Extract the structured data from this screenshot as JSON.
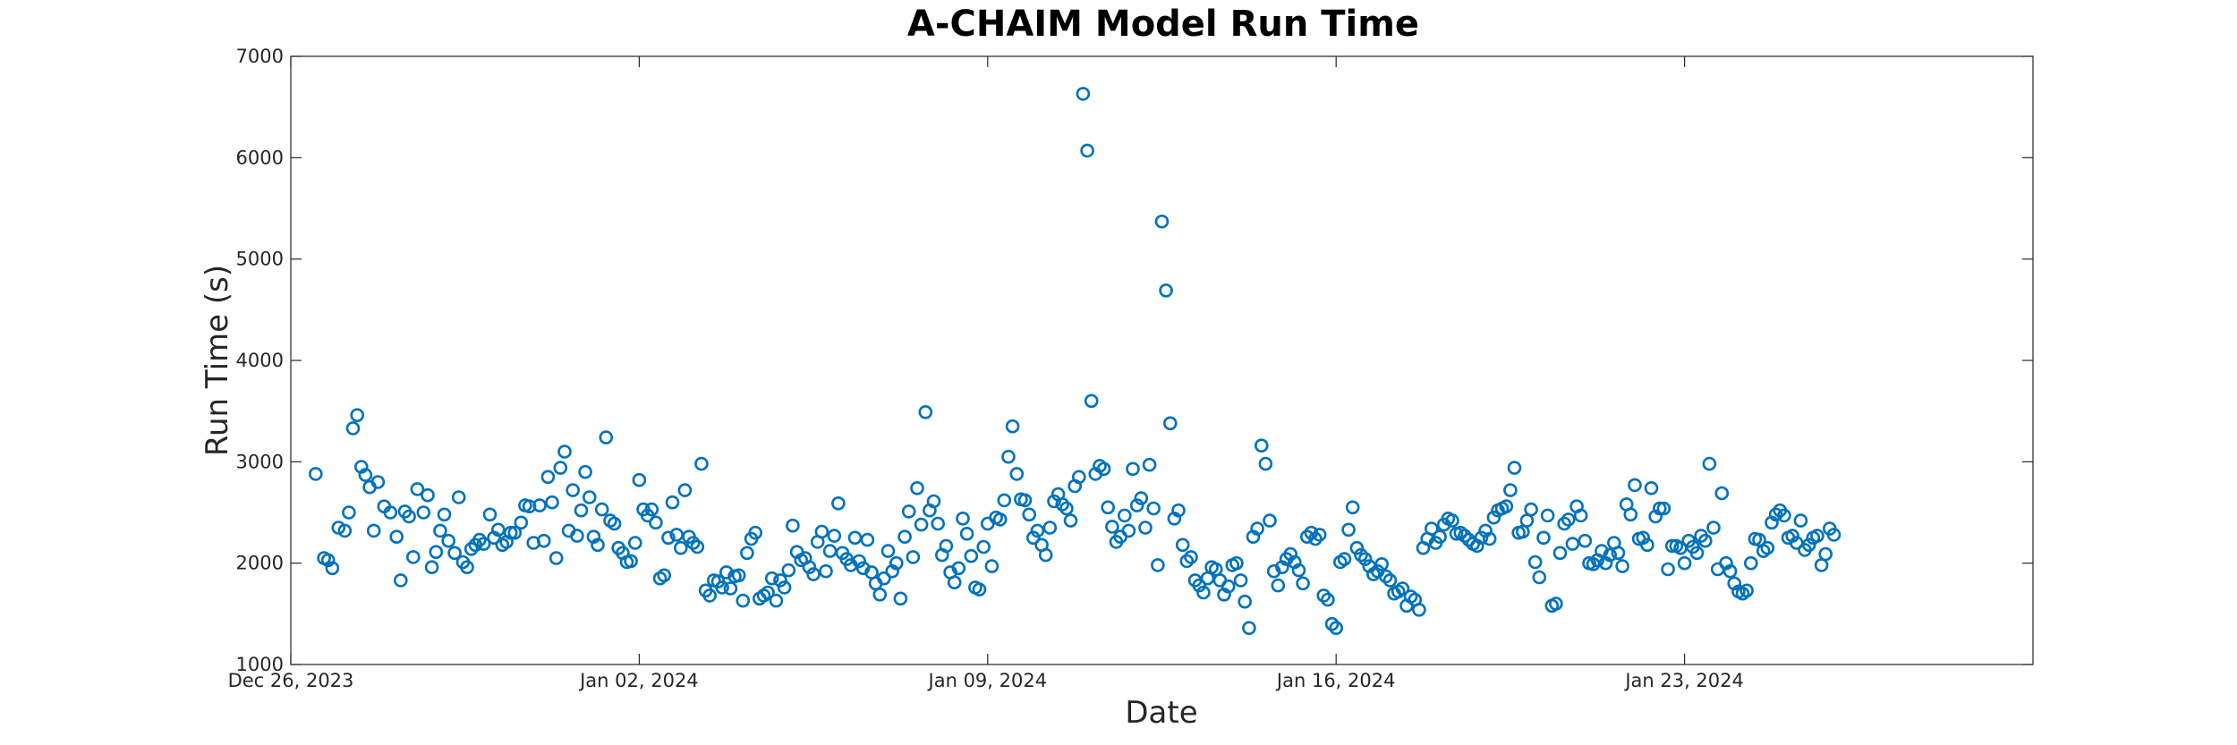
{
  "chart_data": {
    "type": "scatter",
    "title": "A-CHAIM Model Run Time",
    "xlabel": "Date",
    "ylabel": "Run Time (s)",
    "xlim": [
      "2023-12-26",
      "2024-01-30"
    ],
    "ylim": [
      1000,
      7000
    ],
    "x_ticks": [
      "2023-12-26",
      "2024-01-02",
      "2024-01-09",
      "2024-01-16",
      "2024-01-23"
    ],
    "x_tick_labels": [
      "Dec 26, 2023",
      "Jan 02, 2024",
      "Jan 09, 2024",
      "Jan 16, 2024",
      "Jan 23, 2024"
    ],
    "y_ticks": [
      1000,
      2000,
      3000,
      4000,
      5000,
      6000,
      7000
    ],
    "y_tick_labels": [
      "1000",
      "2000",
      "3000",
      "4000",
      "5000",
      "6000",
      "7000"
    ],
    "grid": false,
    "marker": "open-circle",
    "marker_color": "#0072BD",
    "series": [
      {
        "x": [
          "2023-12-26 12:00",
          "2023-12-26 16:00",
          "2023-12-26 18:00",
          "2023-12-26 20:00",
          "2023-12-26 23:00",
          "2023-12-27 02:00",
          "2023-12-27 04:00",
          "2023-12-27 06:00",
          "2023-12-27 08:00",
          "2023-12-27 10:00",
          "2023-12-27 12:00",
          "2023-12-27 14:00",
          "2023-12-27 16:00",
          "2023-12-27 18:00",
          "2023-12-27 21:00",
          "2023-12-28 00:00",
          "2023-12-28 03:00",
          "2023-12-28 05:00",
          "2023-12-28 07:00",
          "2023-12-28 09:00",
          "2023-12-28 11:00",
          "2023-12-28 13:00",
          "2023-12-28 16:00",
          "2023-12-28 18:00",
          "2023-12-28 20:00",
          "2023-12-28 22:00",
          "2023-12-29 00:00",
          "2023-12-29 02:00",
          "2023-12-29 04:00",
          "2023-12-29 07:00",
          "2023-12-29 09:00",
          "2023-12-29 11:00",
          "2023-12-29 13:00",
          "2023-12-29 15:00",
          "2023-12-29 17:00",
          "2023-12-29 19:00",
          "2023-12-29 21:00",
          "2023-12-30 00:00",
          "2023-12-30 02:00",
          "2023-12-30 04:00",
          "2023-12-30 06:00",
          "2023-12-30 08:00",
          "2023-12-30 10:00",
          "2023-12-30 12:00",
          "2023-12-30 15:00",
          "2023-12-30 17:00",
          "2023-12-30 19:00",
          "2023-12-30 21:00",
          "2023-12-31 00:00",
          "2023-12-31 02:00",
          "2023-12-31 04:00",
          "2023-12-31 06:00",
          "2023-12-31 08:00",
          "2023-12-31 10:00",
          "2023-12-31 12:00",
          "2023-12-31 14:00",
          "2023-12-31 16:00",
          "2023-12-31 18:00",
          "2023-12-31 20:00",
          "2023-12-31 22:00",
          "2024-01-01 00:00",
          "2024-01-01 02:00",
          "2024-01-01 04:00",
          "2024-01-01 06:00",
          "2024-01-01 08:00",
          "2024-01-01 10:00",
          "2024-01-01 12:00",
          "2024-01-01 14:00",
          "2024-01-01 16:00",
          "2024-01-01 18:00",
          "2024-01-01 20:00",
          "2024-01-01 22:00",
          "2024-01-02 00:00",
          "2024-01-02 02:00",
          "2024-01-02 04:00",
          "2024-01-02 06:00",
          "2024-01-02 08:00",
          "2024-01-02 10:00",
          "2024-01-02 12:00",
          "2024-01-02 14:00",
          "2024-01-02 16:00",
          "2024-01-02 18:00",
          "2024-01-02 20:00",
          "2024-01-02 22:00",
          "2024-01-03 00:00",
          "2024-01-03 02:00",
          "2024-01-03 04:00",
          "2024-01-03 06:00",
          "2024-01-03 08:00",
          "2024-01-03 10:00",
          "2024-01-03 12:00",
          "2024-01-03 14:00",
          "2024-01-03 16:00",
          "2024-01-03 18:00",
          "2024-01-03 20:00",
          "2024-01-03 22:00",
          "2024-01-04 00:00",
          "2024-01-04 02:00",
          "2024-01-04 04:00",
          "2024-01-04 06:00",
          "2024-01-04 08:00",
          "2024-01-04 10:00",
          "2024-01-04 12:00",
          "2024-01-04 14:00",
          "2024-01-04 16:00",
          "2024-01-04 18:00",
          "2024-01-04 20:00",
          "2024-01-04 22:00",
          "2024-01-05 00:00",
          "2024-01-05 02:00",
          "2024-01-05 04:00",
          "2024-01-05 06:00",
          "2024-01-05 08:00",
          "2024-01-05 10:00",
          "2024-01-05 12:00",
          "2024-01-05 14:00",
          "2024-01-05 16:00",
          "2024-01-05 18:00",
          "2024-01-05 20:00",
          "2024-01-05 22:00",
          "2024-01-06 00:00",
          "2024-01-06 02:00",
          "2024-01-06 04:00",
          "2024-01-06 06:00",
          "2024-01-06 08:00",
          "2024-01-06 10:00",
          "2024-01-06 12:00",
          "2024-01-06 14:00",
          "2024-01-06 16:00",
          "2024-01-06 18:00",
          "2024-01-06 20:00",
          "2024-01-06 22:00",
          "2024-01-07 00:00",
          "2024-01-07 02:00",
          "2024-01-07 04:00",
          "2024-01-07 06:00",
          "2024-01-07 08:00",
          "2024-01-07 10:00",
          "2024-01-07 12:00",
          "2024-01-07 14:00",
          "2024-01-07 16:00",
          "2024-01-07 18:00",
          "2024-01-07 20:00",
          "2024-01-07 22:00",
          "2024-01-08 00:00",
          "2024-01-08 02:00",
          "2024-01-08 04:00",
          "2024-01-08 06:00",
          "2024-01-08 08:00",
          "2024-01-08 10:00",
          "2024-01-08 12:00",
          "2024-01-08 14:00",
          "2024-01-08 16:00",
          "2024-01-08 18:00",
          "2024-01-08 20:00",
          "2024-01-08 22:00",
          "2024-01-09 00:00",
          "2024-01-09 02:00",
          "2024-01-09 04:00",
          "2024-01-09 06:00",
          "2024-01-09 08:00",
          "2024-01-09 10:00",
          "2024-01-09 12:00",
          "2024-01-09 14:00",
          "2024-01-09 16:00",
          "2024-01-09 18:00",
          "2024-01-09 20:00",
          "2024-01-09 22:00",
          "2024-01-10 00:00",
          "2024-01-10 02:00",
          "2024-01-10 04:00",
          "2024-01-10 06:00",
          "2024-01-10 08:00",
          "2024-01-10 10:00",
          "2024-01-10 12:00",
          "2024-01-10 14:00",
          "2024-01-10 16:00",
          "2024-01-10 18:00",
          "2024-01-10 20:00",
          "2024-01-10 22:00",
          "2024-01-11 00:00",
          "2024-01-11 02:00",
          "2024-01-11 04:00",
          "2024-01-11 06:00",
          "2024-01-11 08:00",
          "2024-01-11 10:00",
          "2024-01-11 12:00",
          "2024-01-11 14:00",
          "2024-01-11 16:00",
          "2024-01-11 18:00",
          "2024-01-11 20:00",
          "2024-01-11 22:00",
          "2024-01-12 00:00",
          "2024-01-12 02:00",
          "2024-01-12 04:00",
          "2024-01-12 06:00",
          "2024-01-12 08:00",
          "2024-01-12 10:00",
          "2024-01-12 12:00",
          "2024-01-12 14:00",
          "2024-01-12 16:00",
          "2024-01-12 18:00",
          "2024-01-12 20:00",
          "2024-01-12 22:00",
          "2024-01-13 00:00",
          "2024-01-13 02:00",
          "2024-01-13 04:00",
          "2024-01-13 06:00",
          "2024-01-13 08:00",
          "2024-01-13 10:00",
          "2024-01-13 12:00",
          "2024-01-13 14:00",
          "2024-01-13 16:00",
          "2024-01-13 18:00",
          "2024-01-13 20:00",
          "2024-01-13 22:00",
          "2024-01-14 00:00",
          "2024-01-14 02:00",
          "2024-01-14 04:00",
          "2024-01-14 06:00",
          "2024-01-14 08:00",
          "2024-01-14 10:00",
          "2024-01-14 12:00",
          "2024-01-14 14:00",
          "2024-01-14 16:00",
          "2024-01-14 18:00",
          "2024-01-14 20:00",
          "2024-01-14 22:00",
          "2024-01-15 00:00",
          "2024-01-15 02:00",
          "2024-01-15 04:00",
          "2024-01-15 06:00",
          "2024-01-15 08:00",
          "2024-01-15 10:00",
          "2024-01-15 12:00",
          "2024-01-15 14:00",
          "2024-01-15 16:00",
          "2024-01-15 18:00",
          "2024-01-15 20:00",
          "2024-01-15 22:00",
          "2024-01-16 00:00",
          "2024-01-16 02:00",
          "2024-01-16 04:00",
          "2024-01-16 06:00",
          "2024-01-16 08:00",
          "2024-01-16 10:00",
          "2024-01-16 12:00",
          "2024-01-16 14:00",
          "2024-01-16 16:00",
          "2024-01-16 18:00",
          "2024-01-16 20:00",
          "2024-01-16 22:00",
          "2024-01-17 00:00",
          "2024-01-17 02:00",
          "2024-01-17 04:00",
          "2024-01-17 06:00",
          "2024-01-17 08:00",
          "2024-01-17 10:00",
          "2024-01-17 12:00",
          "2024-01-17 14:00",
          "2024-01-17 16:00",
          "2024-01-17 18:00",
          "2024-01-17 20:00",
          "2024-01-17 22:00",
          "2024-01-18 00:00",
          "2024-01-18 02:00",
          "2024-01-18 04:00",
          "2024-01-18 06:00",
          "2024-01-18 08:00",
          "2024-01-18 10:00",
          "2024-01-18 12:00",
          "2024-01-18 14:00",
          "2024-01-18 16:00",
          "2024-01-18 18:00",
          "2024-01-18 20:00",
          "2024-01-18 22:00",
          "2024-01-19 00:00",
          "2024-01-19 02:00",
          "2024-01-19 04:00",
          "2024-01-19 06:00",
          "2024-01-19 08:00",
          "2024-01-19 10:00",
          "2024-01-19 12:00",
          "2024-01-19 14:00",
          "2024-01-19 16:00",
          "2024-01-19 18:00",
          "2024-01-19 20:00",
          "2024-01-19 22:00",
          "2024-01-20 00:00",
          "2024-01-20 02:00",
          "2024-01-20 04:00",
          "2024-01-20 06:00",
          "2024-01-20 08:00",
          "2024-01-20 10:00",
          "2024-01-20 12:00",
          "2024-01-20 14:00",
          "2024-01-20 16:00",
          "2024-01-20 18:00",
          "2024-01-20 20:00",
          "2024-01-20 22:00",
          "2024-01-21 00:00",
          "2024-01-21 02:00",
          "2024-01-21 04:00",
          "2024-01-21 06:00",
          "2024-01-21 08:00",
          "2024-01-21 10:00",
          "2024-01-21 12:00",
          "2024-01-21 14:00",
          "2024-01-21 16:00",
          "2024-01-21 18:00",
          "2024-01-21 20:00",
          "2024-01-21 22:00",
          "2024-01-22 00:00",
          "2024-01-22 02:00",
          "2024-01-22 04:00",
          "2024-01-22 06:00",
          "2024-01-22 08:00",
          "2024-01-22 10:00",
          "2024-01-22 12:00",
          "2024-01-22 14:00",
          "2024-01-22 16:00",
          "2024-01-22 18:00",
          "2024-01-22 20:00",
          "2024-01-22 22:00",
          "2024-01-23 00:00",
          "2024-01-23 02:00",
          "2024-01-23 04:00",
          "2024-01-23 06:00",
          "2024-01-23 08:00",
          "2024-01-23 10:00",
          "2024-01-23 12:00",
          "2024-01-23 14:00",
          "2024-01-23 16:00",
          "2024-01-23 18:00",
          "2024-01-23 20:00",
          "2024-01-23 22:00",
          "2024-01-24 00:00",
          "2024-01-24 02:00",
          "2024-01-24 04:00",
          "2024-01-24 06:00",
          "2024-01-24 08:00",
          "2024-01-24 10:00",
          "2024-01-24 12:00",
          "2024-01-24 14:00",
          "2024-01-24 16:00",
          "2024-01-24 18:00",
          "2024-01-24 20:00",
          "2024-01-24 22:00",
          "2024-01-25 00:00",
          "2024-01-25 02:00",
          "2024-01-25 04:00",
          "2024-01-25 06:00",
          "2024-01-25 08:00",
          "2024-01-25 10:00",
          "2024-01-25 12:00",
          "2024-01-25 14:00",
          "2024-01-25 16:00",
          "2024-01-25 18:00",
          "2024-01-25 20:00",
          "2024-01-25 22:00",
          "2024-01-26 00:00"
        ],
        "y": [
          2880,
          2050,
          2030,
          1950,
          2350,
          2320,
          2500,
          3330,
          3460,
          2950,
          2870,
          2750,
          2320,
          2800,
          2560,
          2500,
          2260,
          1830,
          2510,
          2460,
          2060,
          2730,
          2500,
          2670,
          1960,
          2110,
          2320,
          2480,
          2220,
          2100,
          2650,
          2010,
          1960,
          2140,
          2180,
          2230,
          2190,
          2480,
          2250,
          2330,
          2180,
          2210,
          2300,
          2300,
          2400,
          2570,
          2560,
          2200,
          2570,
          2220,
          2850,
          2600,
          2050,
          2940,
          3100,
          2320,
          2720,
          2270,
          2520,
          2900,
          2650,
          2260,
          2180,
          2530,
          3240,
          2420,
          2390,
          2150,
          2100,
          2010,
          2020,
          2200,
          2820,
          2530,
          2470,
          2530,
          2400,
          1850,
          1880,
          2250,
          2600,
          2280,
          2150,
          2720,
          2260,
          2200,
          2160,
          2980,
          1730,
          1680,
          1830,
          1820,
          1760,
          1910,
          1750,
          1870,
          1880,
          1630,
          2100,
          2240,
          2300,
          1650,
          1680,
          1710,
          1850,
          1630,
          1830,
          1760,
          1930,
          2370,
          2110,
          2030,
          2050,
          1960,
          1890,
          2210,
          2310,
          1920,
          2120,
          2270,
          2590,
          2100,
          2040,
          1980,
          2250,
          2020,
          1950,
          2230,
          1910,
          1800,
          1690,
          1850,
          2120,
          1920,
          2000,
          1650,
          2260,
          2510,
          2060,
          2740,
          2380,
          3490,
          2520,
          2610,
          2390,
          2080,
          2170,
          1910,
          1810,
          1950,
          2440,
          2290,
          2070,
          1760,
          1740,
          2160,
          2390,
          1970,
          2450,
          2430,
          2620,
          3050,
          3350,
          2880,
          2630,
          2620,
          2480,
          2250,
          2320,
          2180,
          2080,
          2350,
          2610,
          2680,
          2580,
          2540,
          2420,
          2760,
          2850,
          6630,
          6070,
          3600,
          2880,
          2960,
          2930,
          2550,
          2360,
          2210,
          2260,
          2470,
          2320,
          2930,
          2570,
          2640,
          2350,
          2970,
          2540,
          1980,
          5370,
          4690,
          3380,
          2440,
          2520,
          2180,
          2020,
          2060,
          1830,
          1780,
          1710,
          1850,
          1960,
          1940,
          1830,
          1690,
          1770,
          1980,
          2000,
          1830,
          1620,
          1360,
          2260,
          2340,
          3160,
          2980,
          2420,
          1920,
          1780,
          1960,
          2040,
          2090,
          2010,
          1930,
          1800,
          2260,
          2300,
          2240,
          2280,
          1680,
          1640,
          1400,
          1360,
          2010,
          2040,
          2330,
          2550,
          2150,
          2080,
          2040,
          1970,
          1890,
          1920,
          1990,
          1870,
          1830,
          1700,
          1720,
          1750,
          1580,
          1670,
          1640,
          1540,
          2150,
          2240,
          2340,
          2200,
          2260,
          2380,
          2440,
          2420,
          2290,
          2300,
          2270,
          2230,
          2190,
          2170,
          2250,
          2320,
          2240,
          2450,
          2520,
          2540,
          2560,
          2720,
          2940,
          2300,
          2310,
          2420,
          2530,
          2010,
          1860,
          2250,
          2470,
          1580,
          1600,
          2100,
          2390,
          2430,
          2190,
          2560,
          2470,
          2220,
          2000,
          1990,
          2030,
          2120,
          2000,
          2080,
          2200,
          2100,
          1970,
          2580,
          2480,
          2770,
          2240,
          2250,
          2180,
          2740,
          2460,
          2540,
          2540,
          1940,
          2170,
          2170,
          2150,
          2000,
          2220,
          2160,
          2100,
          2270,
          2220,
          2980,
          2350,
          1940,
          2690,
          2000,
          1920,
          1800,
          1720,
          1700,
          1730,
          2000,
          2240,
          2230,
          2120,
          2150,
          2400,
          2480,
          2520,
          2470,
          2250,
          2270,
          2200,
          2420,
          2130,
          2180,
          2250,
          2270,
          1980,
          2090,
          2340,
          2280
        ],
        "values_note_hidden": null
      }
    ]
  }
}
